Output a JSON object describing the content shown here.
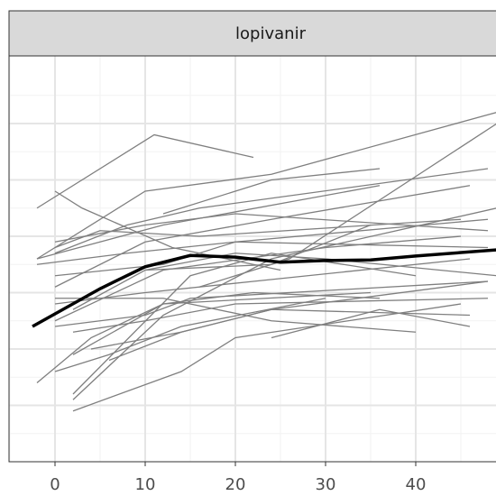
{
  "chart_data": {
    "type": "line",
    "strip": "lopivanir",
    "xlim": [
      -5.1,
      48.9
    ],
    "xticks": [
      0,
      10,
      20,
      30,
      40
    ],
    "ylim": [
      0,
      7.2
    ],
    "yticks": [
      1,
      2,
      3,
      4,
      5,
      6
    ],
    "grid": true,
    "color": "#7f7f7f",
    "series": [
      {
        "x": [
          -2,
          11,
          22
        ],
        "values": [
          4.5,
          5.8,
          5.4
        ]
      },
      {
        "x": [
          0,
          3,
          13,
          25
        ],
        "values": [
          4.8,
          4.5,
          3.8,
          3.4
        ]
      },
      {
        "x": [
          -2,
          10,
          24,
          49
        ],
        "values": [
          3.6,
          4.8,
          5.1,
          6.2
        ]
      },
      {
        "x": [
          -2,
          5,
          12,
          36
        ],
        "values": [
          3.6,
          3.9,
          4.2,
          4.9
        ]
      },
      {
        "x": [
          0,
          8,
          16,
          48
        ],
        "values": [
          3.7,
          4.2,
          4.5,
          5.2
        ]
      },
      {
        "x": [
          0,
          10,
          24,
          46
        ],
        "values": [
          3.1,
          3.9,
          4.3,
          4.9
        ]
      },
      {
        "x": [
          2,
          12,
          24,
          49
        ],
        "values": [
          1.1,
          2.6,
          3.6,
          4.5
        ]
      },
      {
        "x": [
          2,
          14,
          20,
          45
        ],
        "values": [
          0.9,
          1.6,
          2.2,
          2.8
        ]
      },
      {
        "x": [
          -2,
          4,
          12,
          35
        ],
        "values": [
          1.4,
          2.2,
          2.8,
          3.0
        ]
      },
      {
        "x": [
          0,
          6,
          14,
          30
        ],
        "values": [
          1.6,
          1.9,
          2.4,
          2.9
        ]
      },
      {
        "x": [
          2,
          15,
          24,
          40
        ],
        "values": [
          1.2,
          3.3,
          3.7,
          3.3
        ]
      },
      {
        "x": [
          0,
          10,
          15,
          48
        ],
        "values": [
          2.4,
          2.6,
          2.9,
          3.2
        ]
      },
      {
        "x": [
          2,
          12,
          22,
          36
        ],
        "values": [
          1.9,
          2.8,
          3.0,
          2.9
        ]
      },
      {
        "x": [
          0,
          10,
          22,
          46
        ],
        "values": [
          2.8,
          3.0,
          3.2,
          3.6
        ]
      },
      {
        "x": [
          0,
          12,
          20,
          48
        ],
        "values": [
          3.3,
          3.5,
          3.9,
          3.8
        ]
      },
      {
        "x": [
          0,
          5,
          16,
          45
        ],
        "values": [
          3.8,
          4.1,
          4.0,
          4.3
        ]
      },
      {
        "x": [
          -2,
          8,
          20,
          48
        ],
        "values": [
          3.5,
          3.7,
          3.9,
          4.3
        ]
      },
      {
        "x": [
          2,
          10,
          24,
          35
        ],
        "values": [
          2.7,
          3.4,
          3.5,
          4.2
        ]
      },
      {
        "x": [
          0,
          12,
          24,
          40
        ],
        "values": [
          2.9,
          2.9,
          2.5,
          2.3
        ]
      },
      {
        "x": [
          2,
          10,
          20,
          48
        ],
        "values": [
          2.3,
          2.5,
          2.8,
          2.9
        ]
      },
      {
        "x": [
          4,
          14,
          24,
          46
        ],
        "values": [
          2.0,
          2.3,
          2.7,
          2.6
        ]
      },
      {
        "x": [
          0,
          10,
          20,
          48
        ],
        "values": [
          3.9,
          4.2,
          4.4,
          4.1
        ]
      },
      {
        "x": [
          10,
          20,
          30,
          49
        ],
        "values": [
          3.4,
          3.7,
          3.6,
          3.3
        ]
      },
      {
        "x": [
          12,
          24,
          36
        ],
        "values": [
          4.4,
          5.0,
          5.2
        ]
      },
      {
        "x": [
          16,
          26,
          49
        ],
        "values": [
          3.1,
          3.6,
          6.0
        ]
      },
      {
        "x": [
          6,
          14,
          24,
          48
        ],
        "values": [
          1.8,
          2.3,
          2.7,
          3.2
        ]
      },
      {
        "x": [
          24,
          36,
          46
        ],
        "values": [
          2.2,
          2.7,
          2.4
        ]
      },
      {
        "x": [
          0,
          12,
          30,
          45
        ],
        "values": [
          2.5,
          3.4,
          3.8,
          4.0
        ]
      }
    ],
    "smooth": {
      "color": "#000000",
      "x": [
        -2.5,
        5,
        10,
        15,
        20,
        25,
        30,
        35,
        40,
        49
      ],
      "values": [
        2.4,
        3.07,
        3.46,
        3.66,
        3.63,
        3.54,
        3.57,
        3.58,
        3.65,
        3.76
      ]
    }
  }
}
